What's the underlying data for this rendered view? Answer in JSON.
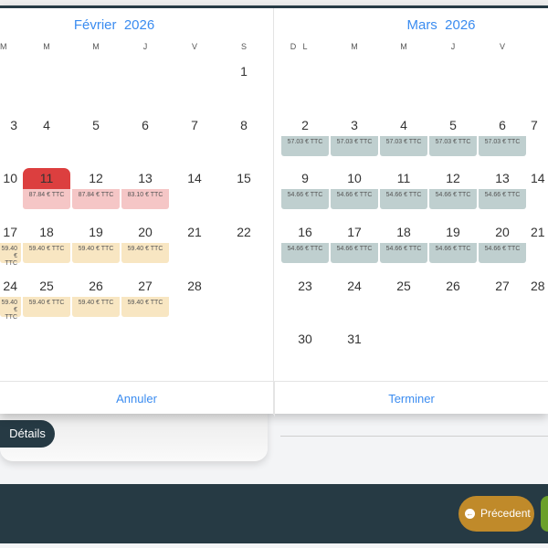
{
  "colors": {
    "accent": "#3b8cf0",
    "selected": "#dc3f3f",
    "price_high": "#f5c6c6",
    "price_mid": "#f8e6c2",
    "price_low": "#bfcfcf",
    "footer_bar": "#263a44",
    "prev_button": "#c08a2a",
    "next_button": "#6aa02a"
  },
  "months": [
    {
      "title": "Février  2026",
      "weekdays": [
        "M",
        "M",
        "J",
        "V",
        "S",
        "D"
      ],
      "first_col": 1,
      "weeks": [
        [
          null,
          null,
          null,
          null,
          null,
          null,
          {
            "d": "1"
          }
        ],
        [
          null,
          {
            "d": "3"
          },
          {
            "d": "4"
          },
          {
            "d": "5"
          },
          {
            "d": "6"
          },
          {
            "d": "7"
          },
          {
            "d": "8"
          }
        ],
        [
          null,
          {
            "d": "10"
          },
          {
            "d": "11",
            "p": "87.84 € TTC",
            "t": "high",
            "sel": true
          },
          {
            "d": "12",
            "p": "87.84 € TTC",
            "t": "high"
          },
          {
            "d": "13",
            "p": "83.10 € TTC",
            "t": "high"
          },
          {
            "d": "14"
          },
          {
            "d": "15"
          }
        ],
        [
          null,
          {
            "d": "17",
            "p": "59.40 € TTC",
            "t": "mid"
          },
          {
            "d": "18",
            "p": "59.40 € TTC",
            "t": "mid"
          },
          {
            "d": "19",
            "p": "59.40 € TTC",
            "t": "mid"
          },
          {
            "d": "20",
            "p": "59.40 € TTC",
            "t": "mid"
          },
          {
            "d": "21"
          },
          {
            "d": "22"
          }
        ],
        [
          null,
          {
            "d": "24",
            "p": "59.40 € TTC",
            "t": "mid"
          },
          {
            "d": "25",
            "p": "59.40 € TTC",
            "t": "mid"
          },
          {
            "d": "26",
            "p": "59.40 € TTC",
            "t": "mid"
          },
          {
            "d": "27",
            "p": "59.40 € TTC",
            "t": "mid"
          },
          {
            "d": "28"
          },
          null
        ]
      ]
    },
    {
      "title": "Mars  2026",
      "weekdays": [
        "L",
        "M",
        "M",
        "J",
        "V"
      ],
      "weeks": [
        [],
        [
          {
            "d": "2",
            "p": "57.03 € TTC",
            "t": "low"
          },
          {
            "d": "3",
            "p": "57.03 € TTC",
            "t": "low"
          },
          {
            "d": "4",
            "p": "57.03 € TTC",
            "t": "low"
          },
          {
            "d": "5",
            "p": "57.03 € TTC",
            "t": "low"
          },
          {
            "d": "6",
            "p": "57.03 € TTC",
            "t": "low"
          },
          {
            "d": "7"
          }
        ],
        [
          {
            "d": "9",
            "p": "54.66 € TTC",
            "t": "low"
          },
          {
            "d": "10",
            "p": "54.66 € TTC",
            "t": "low"
          },
          {
            "d": "11",
            "p": "54.66 € TTC",
            "t": "low"
          },
          {
            "d": "12",
            "p": "54.66 € TTC",
            "t": "low"
          },
          {
            "d": "13",
            "p": "54.66 € TTC",
            "t": "low"
          },
          {
            "d": "14"
          }
        ],
        [
          {
            "d": "16",
            "p": "54.66 € TTC",
            "t": "low"
          },
          {
            "d": "17",
            "p": "54.66 € TTC",
            "t": "low"
          },
          {
            "d": "18",
            "p": "54.66 € TTC",
            "t": "low"
          },
          {
            "d": "19",
            "p": "54.66 € TTC",
            "t": "low"
          },
          {
            "d": "20",
            "p": "54.66 € TTC",
            "t": "low"
          },
          {
            "d": "21"
          }
        ],
        [
          {
            "d": "23"
          },
          {
            "d": "24"
          },
          {
            "d": "25"
          },
          {
            "d": "26"
          },
          {
            "d": "27"
          },
          {
            "d": "28"
          }
        ],
        [
          {
            "d": "30"
          },
          {
            "d": "31"
          }
        ]
      ]
    }
  ],
  "footer": {
    "cancel": "Annuler",
    "done": "Terminer"
  },
  "page": {
    "details_pill": "Détails",
    "prev_label": "Précedent",
    "prev_icon": "arrow-left-circle-icon"
  }
}
